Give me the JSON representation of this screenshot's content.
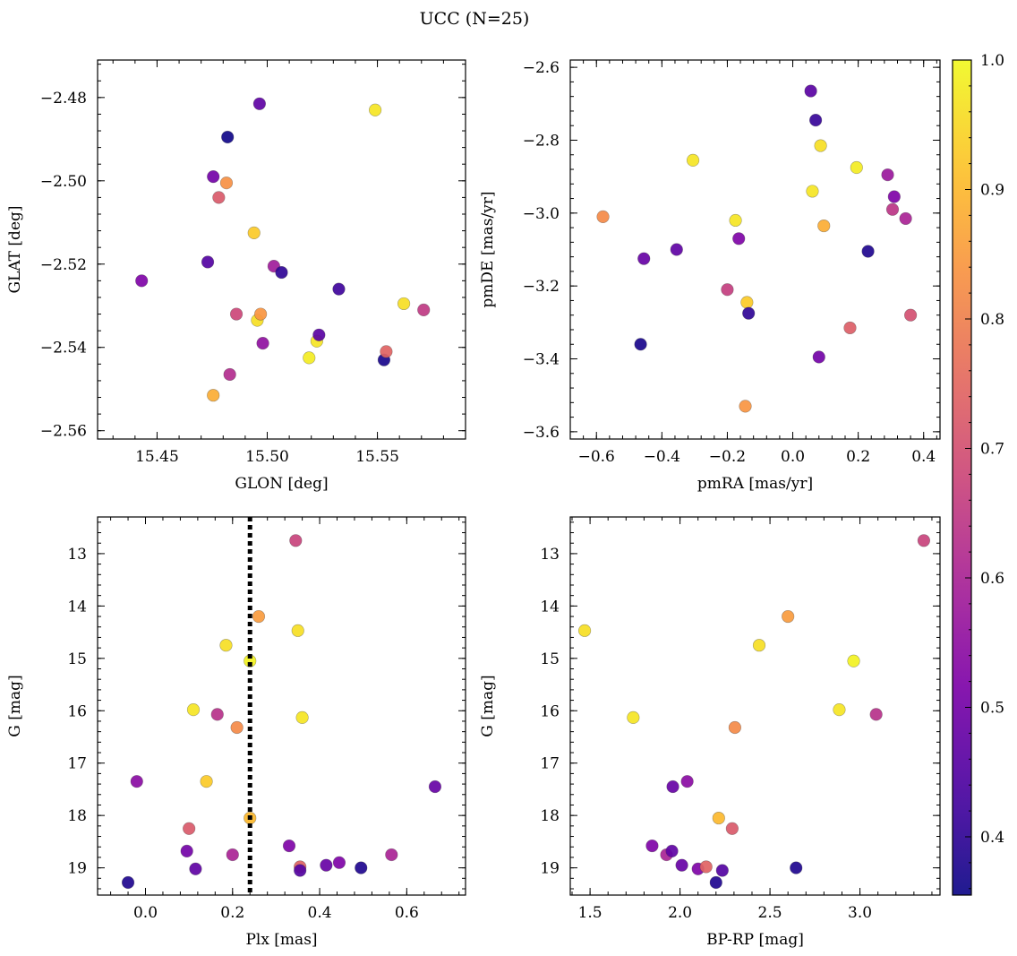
{
  "title": "UCC (N=25)",
  "colorbar": {
    "vmin": 0.355,
    "vmax": 1.0,
    "ticks": [
      0.4,
      0.5,
      0.6,
      0.7,
      0.8,
      0.9,
      1.0
    ],
    "tick_labels": [
      "0.4",
      "0.5",
      "0.6",
      "0.7",
      "0.8",
      "0.9",
      "1.0"
    ],
    "colormap": "plasma"
  },
  "chart_data": [
    {
      "type": "scatter",
      "xlabel": "GLON [deg]",
      "ylabel": "GLAT [deg]",
      "xlim": [
        15.423,
        15.59
      ],
      "ylim": [
        -2.562,
        -2.471
      ],
      "xticks": [
        15.45,
        15.5,
        15.55
      ],
      "xtick_labels": [
        "15.45",
        "15.50",
        "15.55"
      ],
      "yticks": [
        -2.48,
        -2.5,
        -2.52,
        -2.54,
        -2.56
      ],
      "ytick_labels": [
        "−2.48",
        "−2.50",
        "−2.52",
        "−2.54",
        "−2.56"
      ],
      "points": [
        {
          "x": 15.443,
          "y": -2.524,
          "c": 0.52
        },
        {
          "x": 15.473,
          "y": -2.5195,
          "c": 0.45
        },
        {
          "x": 15.4755,
          "y": -2.499,
          "c": 0.5
        },
        {
          "x": 15.4755,
          "y": -2.5515,
          "c": 0.88
        },
        {
          "x": 15.478,
          "y": -2.504,
          "c": 0.72
        },
        {
          "x": 15.4815,
          "y": -2.5005,
          "c": 0.83
        },
        {
          "x": 15.482,
          "y": -2.4895,
          "c": 0.36
        },
        {
          "x": 15.483,
          "y": -2.5465,
          "c": 0.62
        },
        {
          "x": 15.486,
          "y": -2.532,
          "c": 0.68
        },
        {
          "x": 15.494,
          "y": -2.5125,
          "c": 0.93
        },
        {
          "x": 15.4955,
          "y": -2.5335,
          "c": 0.96
        },
        {
          "x": 15.4965,
          "y": -2.4815,
          "c": 0.47
        },
        {
          "x": 15.497,
          "y": -2.532,
          "c": 0.84
        },
        {
          "x": 15.498,
          "y": -2.539,
          "c": 0.55
        },
        {
          "x": 15.503,
          "y": -2.5205,
          "c": 0.58
        },
        {
          "x": 15.5065,
          "y": -2.522,
          "c": 0.4
        },
        {
          "x": 15.519,
          "y": -2.5425,
          "c": 0.98
        },
        {
          "x": 15.5225,
          "y": -2.5385,
          "c": 0.97
        },
        {
          "x": 15.5235,
          "y": -2.537,
          "c": 0.46
        },
        {
          "x": 15.5325,
          "y": -2.526,
          "c": 0.42
        },
        {
          "x": 15.549,
          "y": -2.483,
          "c": 0.97
        },
        {
          "x": 15.553,
          "y": -2.543,
          "c": 0.37
        },
        {
          "x": 15.554,
          "y": -2.541,
          "c": 0.74
        },
        {
          "x": 15.562,
          "y": -2.5295,
          "c": 0.96
        },
        {
          "x": 15.571,
          "y": -2.531,
          "c": 0.65
        }
      ]
    },
    {
      "type": "scatter",
      "xlabel": "pmRA [mas/yr]",
      "ylabel": "pmDE [mas/yr]",
      "xlim": [
        -0.68,
        0.45
      ],
      "ylim": [
        -3.62,
        -2.58
      ],
      "xticks": [
        -0.6,
        -0.4,
        -0.2,
        0.0,
        0.2,
        0.4
      ],
      "xtick_labels": [
        "−0.6",
        "−0.4",
        "−0.2",
        "0.0",
        "0.2",
        "0.4"
      ],
      "yticks": [
        -2.6,
        -2.8,
        -3.0,
        -3.2,
        -3.4,
        -3.6
      ],
      "ytick_labels": [
        "−2.6",
        "−2.8",
        "−3.0",
        "−3.2",
        "−3.4",
        "−3.6"
      ],
      "points": [
        {
          "x": -0.58,
          "y": -3.01,
          "c": 0.82
        },
        {
          "x": -0.465,
          "y": -3.36,
          "c": 0.37
        },
        {
          "x": -0.455,
          "y": -3.125,
          "c": 0.48
        },
        {
          "x": -0.355,
          "y": -3.1,
          "c": 0.47
        },
        {
          "x": -0.305,
          "y": -2.855,
          "c": 0.97
        },
        {
          "x": -0.2,
          "y": -3.21,
          "c": 0.66
        },
        {
          "x": -0.175,
          "y": -3.02,
          "c": 0.97
        },
        {
          "x": -0.165,
          "y": -3.07,
          "c": 0.52
        },
        {
          "x": -0.145,
          "y": -3.53,
          "c": 0.84
        },
        {
          "x": -0.14,
          "y": -3.245,
          "c": 0.93
        },
        {
          "x": -0.135,
          "y": -3.275,
          "c": 0.4
        },
        {
          "x": 0.055,
          "y": -2.665,
          "c": 0.46
        },
        {
          "x": 0.06,
          "y": -2.94,
          "c": 0.97
        },
        {
          "x": 0.07,
          "y": -2.745,
          "c": 0.41
        },
        {
          "x": 0.08,
          "y": -3.395,
          "c": 0.5
        },
        {
          "x": 0.085,
          "y": -2.815,
          "c": 0.96
        },
        {
          "x": 0.095,
          "y": -3.035,
          "c": 0.88
        },
        {
          "x": 0.175,
          "y": -3.315,
          "c": 0.73
        },
        {
          "x": 0.195,
          "y": -2.875,
          "c": 0.98
        },
        {
          "x": 0.23,
          "y": -3.105,
          "c": 0.38
        },
        {
          "x": 0.29,
          "y": -2.895,
          "c": 0.57
        },
        {
          "x": 0.305,
          "y": -2.99,
          "c": 0.64
        },
        {
          "x": 0.31,
          "y": -2.955,
          "c": 0.52
        },
        {
          "x": 0.345,
          "y": -3.015,
          "c": 0.6
        },
        {
          "x": 0.36,
          "y": -3.28,
          "c": 0.7
        }
      ]
    },
    {
      "type": "scatter",
      "xlabel": "Plx [mas]",
      "ylabel": "G [mag]",
      "xlim": [
        -0.11,
        0.735
      ],
      "ylim": [
        19.52,
        12.3
      ],
      "y_inverted": true,
      "xticks": [
        0.0,
        0.2,
        0.4,
        0.6
      ],
      "xtick_labels": [
        "0.0",
        "0.2",
        "0.4",
        "0.6"
      ],
      "yticks": [
        13,
        14,
        15,
        16,
        17,
        18,
        19
      ],
      "ytick_labels": [
        "13",
        "14",
        "15",
        "16",
        "17",
        "18",
        "19"
      ],
      "vline": {
        "x": 0.24,
        "style": "dotted",
        "color": "#000000"
      },
      "points": [
        {
          "x": -0.04,
          "y": 19.28,
          "c": 0.38
        },
        {
          "x": -0.02,
          "y": 17.35,
          "c": 0.54
        },
        {
          "x": 0.095,
          "y": 18.68,
          "c": 0.5
        },
        {
          "x": 0.1,
          "y": 18.25,
          "c": 0.72
        },
        {
          "x": 0.11,
          "y": 15.98,
          "c": 0.97
        },
        {
          "x": 0.115,
          "y": 19.02,
          "c": 0.47
        },
        {
          "x": 0.14,
          "y": 17.35,
          "c": 0.93
        },
        {
          "x": 0.165,
          "y": 16.07,
          "c": 0.63
        },
        {
          "x": 0.185,
          "y": 14.75,
          "c": 0.96
        },
        {
          "x": 0.2,
          "y": 18.75,
          "c": 0.6
        },
        {
          "x": 0.21,
          "y": 16.32,
          "c": 0.82
        },
        {
          "x": 0.24,
          "y": 15.05,
          "c": 0.99
        },
        {
          "x": 0.24,
          "y": 18.05,
          "c": 0.9
        },
        {
          "x": 0.26,
          "y": 14.2,
          "c": 0.85
        },
        {
          "x": 0.33,
          "y": 18.58,
          "c": 0.52
        },
        {
          "x": 0.345,
          "y": 12.75,
          "c": 0.67
        },
        {
          "x": 0.35,
          "y": 14.47,
          "c": 0.96
        },
        {
          "x": 0.355,
          "y": 18.98,
          "c": 0.74
        },
        {
          "x": 0.355,
          "y": 19.05,
          "c": 0.45
        },
        {
          "x": 0.36,
          "y": 16.13,
          "c": 0.97
        },
        {
          "x": 0.415,
          "y": 18.95,
          "c": 0.48
        },
        {
          "x": 0.445,
          "y": 18.9,
          "c": 0.52
        },
        {
          "x": 0.495,
          "y": 19.0,
          "c": 0.38
        },
        {
          "x": 0.565,
          "y": 18.75,
          "c": 0.6
        },
        {
          "x": 0.665,
          "y": 17.45,
          "c": 0.48
        }
      ]
    },
    {
      "type": "scatter",
      "xlabel": "BP-RP [mag]",
      "ylabel": "G [mag]",
      "xlim": [
        1.39,
        3.445
      ],
      "ylim": [
        19.52,
        12.3
      ],
      "y_inverted": true,
      "xticks": [
        1.5,
        2.0,
        2.5,
        3.0
      ],
      "xtick_labels": [
        "1.5",
        "2.0",
        "2.5",
        "3.0"
      ],
      "yticks": [
        13,
        14,
        15,
        16,
        17,
        18,
        19
      ],
      "ytick_labels": [
        "13",
        "14",
        "15",
        "16",
        "17",
        "18",
        "19"
      ],
      "points": [
        {
          "x": 1.47,
          "y": 14.47,
          "c": 0.96
        },
        {
          "x": 1.74,
          "y": 16.13,
          "c": 0.97
        },
        {
          "x": 1.845,
          "y": 18.58,
          "c": 0.52
        },
        {
          "x": 1.925,
          "y": 18.75,
          "c": 0.6
        },
        {
          "x": 1.955,
          "y": 18.68,
          "c": 0.47
        },
        {
          "x": 1.96,
          "y": 17.45,
          "c": 0.48
        },
        {
          "x": 2.01,
          "y": 18.95,
          "c": 0.48
        },
        {
          "x": 2.04,
          "y": 17.35,
          "c": 0.54
        },
        {
          "x": 2.1,
          "y": 19.02,
          "c": 0.52
        },
        {
          "x": 2.145,
          "y": 18.98,
          "c": 0.74
        },
        {
          "x": 2.2,
          "y": 19.28,
          "c": 0.38
        },
        {
          "x": 2.215,
          "y": 18.05,
          "c": 0.9
        },
        {
          "x": 2.235,
          "y": 19.05,
          "c": 0.45
        },
        {
          "x": 2.29,
          "y": 18.25,
          "c": 0.72
        },
        {
          "x": 2.305,
          "y": 16.32,
          "c": 0.82
        },
        {
          "x": 2.44,
          "y": 14.75,
          "c": 0.96
        },
        {
          "x": 2.6,
          "y": 14.2,
          "c": 0.85
        },
        {
          "x": 2.645,
          "y": 19.0,
          "c": 0.38
        },
        {
          "x": 2.885,
          "y": 15.98,
          "c": 0.97
        },
        {
          "x": 2.965,
          "y": 15.05,
          "c": 0.99
        },
        {
          "x": 3.09,
          "y": 16.07,
          "c": 0.63
        },
        {
          "x": 3.355,
          "y": 12.75,
          "c": 0.67
        }
      ]
    }
  ]
}
